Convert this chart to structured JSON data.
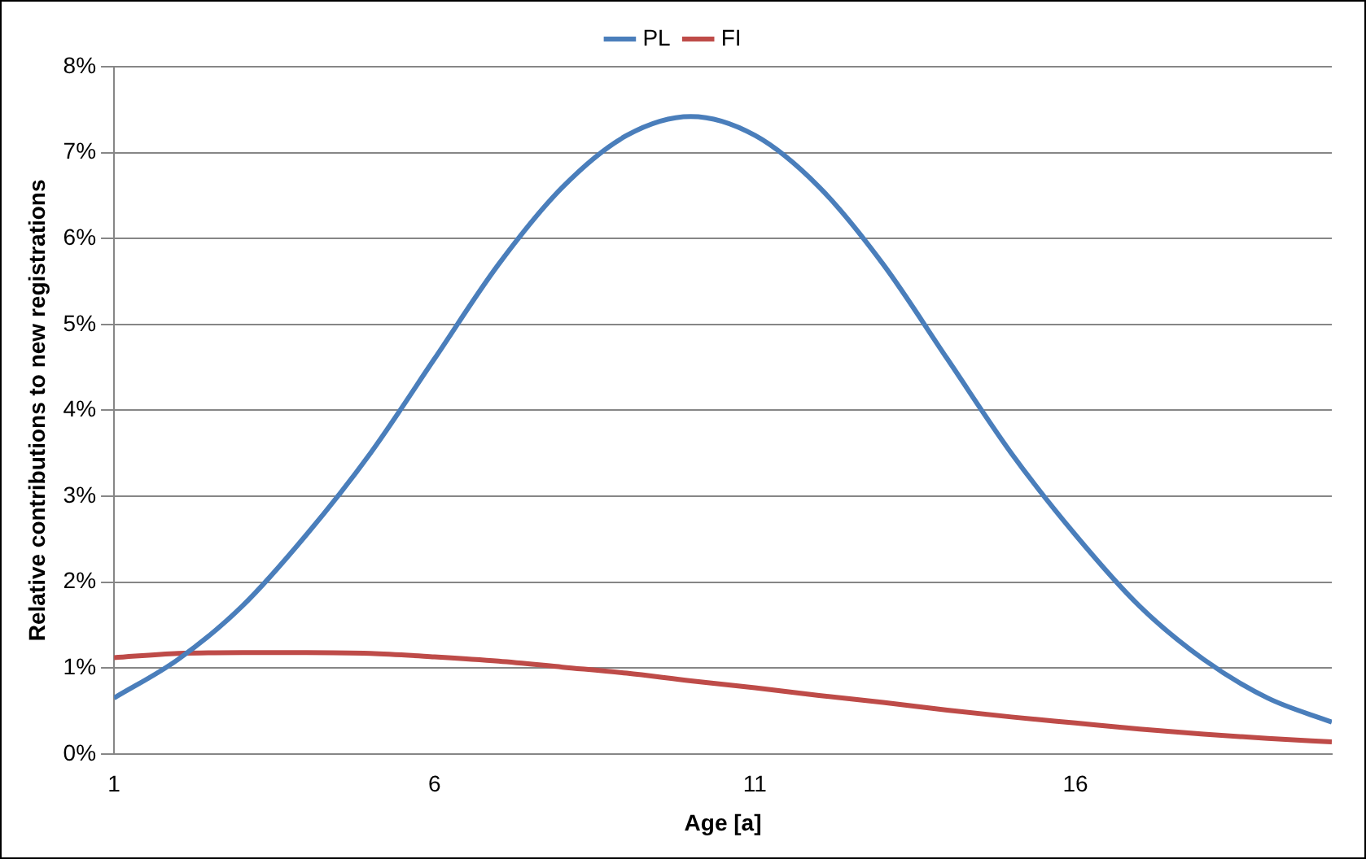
{
  "chart_data": {
    "type": "line",
    "xlabel": "Age [a]",
    "ylabel": "Relative contributions to new registrations",
    "x": [
      1,
      2,
      3,
      4,
      5,
      6,
      7,
      8,
      9,
      10,
      11,
      12,
      13,
      14,
      15,
      16,
      17,
      18,
      19,
      20
    ],
    "series": [
      {
        "name": "PL",
        "color": "#4a7ebb",
        "values": [
          0.65,
          1.1,
          1.72,
          2.55,
          3.5,
          4.6,
          5.7,
          6.6,
          7.2,
          7.42,
          7.2,
          6.6,
          5.7,
          4.6,
          3.5,
          2.55,
          1.72,
          1.1,
          0.65,
          0.37
        ]
      },
      {
        "name": "FI",
        "color": "#be4b48",
        "values": [
          1.12,
          1.17,
          1.18,
          1.18,
          1.17,
          1.13,
          1.08,
          1.01,
          0.94,
          0.85,
          0.77,
          0.68,
          0.6,
          0.51,
          0.43,
          0.36,
          0.29,
          0.23,
          0.18,
          0.14
        ]
      }
    ],
    "xlim": [
      1,
      20
    ],
    "xticks": [
      1,
      6,
      11,
      16
    ],
    "ylim": [
      0,
      8
    ],
    "yticks": [
      {
        "value": 0,
        "label": "0%"
      },
      {
        "value": 1,
        "label": "1%"
      },
      {
        "value": 2,
        "label": "2%"
      },
      {
        "value": 3,
        "label": "3%"
      },
      {
        "value": 4,
        "label": "4%"
      },
      {
        "value": 5,
        "label": "5%"
      },
      {
        "value": 6,
        "label": "6%"
      },
      {
        "value": 7,
        "label": "7%"
      },
      {
        "value": 8,
        "label": "8%"
      }
    ],
    "grid": "y",
    "legend": "top",
    "marker": "none",
    "line_style": "solid"
  }
}
